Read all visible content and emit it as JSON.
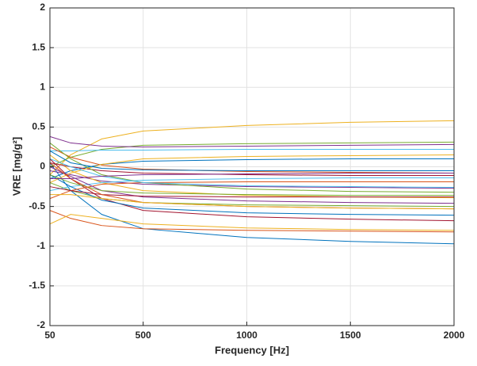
{
  "chart_data": {
    "type": "line",
    "xlabel": "Frequency [Hz]",
    "ylabel": "VRE [mg/g²]",
    "xlim": [
      50,
      2000
    ],
    "xticks": [
      50,
      500,
      1000,
      1500,
      2000
    ],
    "ylim": [
      -2,
      2
    ],
    "yticks": [
      -2,
      -1.5,
      -1,
      -0.5,
      0,
      0.5,
      1,
      1.5,
      2
    ],
    "grid": true,
    "x": [
      50,
      150,
      300,
      500,
      1000,
      1500,
      2000
    ],
    "series": [
      {
        "color": "#0072BD",
        "values": [
          0.05,
          -0.3,
          -0.6,
          -0.78,
          -0.89,
          -0.94,
          -0.97
        ]
      },
      {
        "color": "#EDB120",
        "values": [
          -0.1,
          0.15,
          0.35,
          0.45,
          0.52,
          0.56,
          0.58
        ]
      },
      {
        "color": "#77AC30",
        "values": [
          0.0,
          0.12,
          0.22,
          0.27,
          0.29,
          0.3,
          0.31
        ]
      },
      {
        "color": "#7E2F8E",
        "values": [
          0.38,
          0.3,
          0.26,
          0.25,
          0.26,
          0.27,
          0.28
        ]
      },
      {
        "color": "#D95319",
        "values": [
          -0.55,
          -0.65,
          -0.74,
          -0.78,
          -0.8,
          -0.81,
          -0.82
        ]
      },
      {
        "color": "#EDB120",
        "values": [
          -0.72,
          -0.6,
          -0.65,
          -0.72,
          -0.77,
          -0.79,
          -0.8
        ]
      },
      {
        "color": "#4DBEEE",
        "values": [
          0.2,
          0.2,
          0.21,
          0.21,
          0.22,
          0.22,
          0.22
        ]
      },
      {
        "color": "#A2142F",
        "values": [
          0.1,
          -0.15,
          -0.4,
          -0.55,
          -0.63,
          -0.66,
          -0.68
        ]
      },
      {
        "color": "#0072BD",
        "values": [
          -0.15,
          -0.05,
          0.03,
          0.07,
          0.09,
          0.1,
          0.1
        ]
      },
      {
        "color": "#77AC30",
        "values": [
          -0.2,
          -0.3,
          -0.4,
          -0.45,
          -0.48,
          -0.49,
          -0.5
        ]
      },
      {
        "color": "#D95319",
        "values": [
          0.25,
          0.12,
          0.02,
          -0.03,
          -0.06,
          -0.07,
          -0.08
        ]
      },
      {
        "color": "#7E2F8E",
        "values": [
          -0.05,
          -0.1,
          -0.18,
          -0.22,
          -0.25,
          -0.26,
          -0.27
        ]
      },
      {
        "color": "#EDB120",
        "values": [
          0.15,
          -0.05,
          -0.2,
          -0.3,
          -0.36,
          -0.38,
          -0.39
        ]
      },
      {
        "color": "#4DBEEE",
        "values": [
          -0.3,
          -0.25,
          -0.2,
          -0.17,
          -0.15,
          -0.14,
          -0.14
        ]
      },
      {
        "color": "#A2142F",
        "values": [
          0.05,
          0.0,
          -0.05,
          -0.08,
          -0.1,
          -0.11,
          -0.11
        ]
      },
      {
        "color": "#0072BD",
        "values": [
          -0.1,
          -0.25,
          -0.42,
          -0.52,
          -0.58,
          -0.6,
          -0.61
        ]
      },
      {
        "color": "#77AC30",
        "values": [
          0.3,
          0.1,
          -0.1,
          -0.2,
          -0.28,
          -0.31,
          -0.32
        ]
      },
      {
        "color": "#D95319",
        "values": [
          -0.4,
          -0.3,
          -0.22,
          -0.2,
          -0.19,
          -0.19,
          -0.19
        ]
      },
      {
        "color": "#7E2F8E",
        "values": [
          0.0,
          -0.12,
          -0.3,
          -0.38,
          -0.43,
          -0.45,
          -0.46
        ]
      },
      {
        "color": "#EDB120",
        "values": [
          -0.2,
          -0.08,
          0.03,
          0.1,
          0.13,
          0.14,
          0.15
        ]
      },
      {
        "color": "#4DBEEE",
        "values": [
          0.1,
          0.0,
          -0.12,
          -0.2,
          -0.24,
          -0.25,
          -0.26
        ]
      },
      {
        "color": "#A2142F",
        "values": [
          -0.25,
          -0.3,
          -0.35,
          -0.37,
          -0.38,
          -0.38,
          -0.38
        ]
      },
      {
        "color": "#0072BD",
        "values": [
          0.2,
          0.05,
          -0.02,
          -0.04,
          -0.05,
          -0.05,
          -0.05
        ]
      },
      {
        "color": "#77AC30",
        "values": [
          -0.1,
          -0.2,
          -0.3,
          -0.33,
          -0.35,
          -0.36,
          -0.36
        ]
      },
      {
        "color": "#D95319",
        "values": [
          0.05,
          -0.15,
          -0.35,
          -0.45,
          -0.5,
          -0.52,
          -0.53
        ]
      },
      {
        "color": "#EDB120",
        "values": [
          -0.35,
          -0.35,
          -0.4,
          -0.45,
          -0.5,
          -0.52,
          -0.53
        ]
      },
      {
        "color": "#7E2F8E",
        "values": [
          -0.15,
          -0.15,
          -0.12,
          -0.1,
          -0.09,
          -0.08,
          -0.08
        ]
      }
    ]
  }
}
